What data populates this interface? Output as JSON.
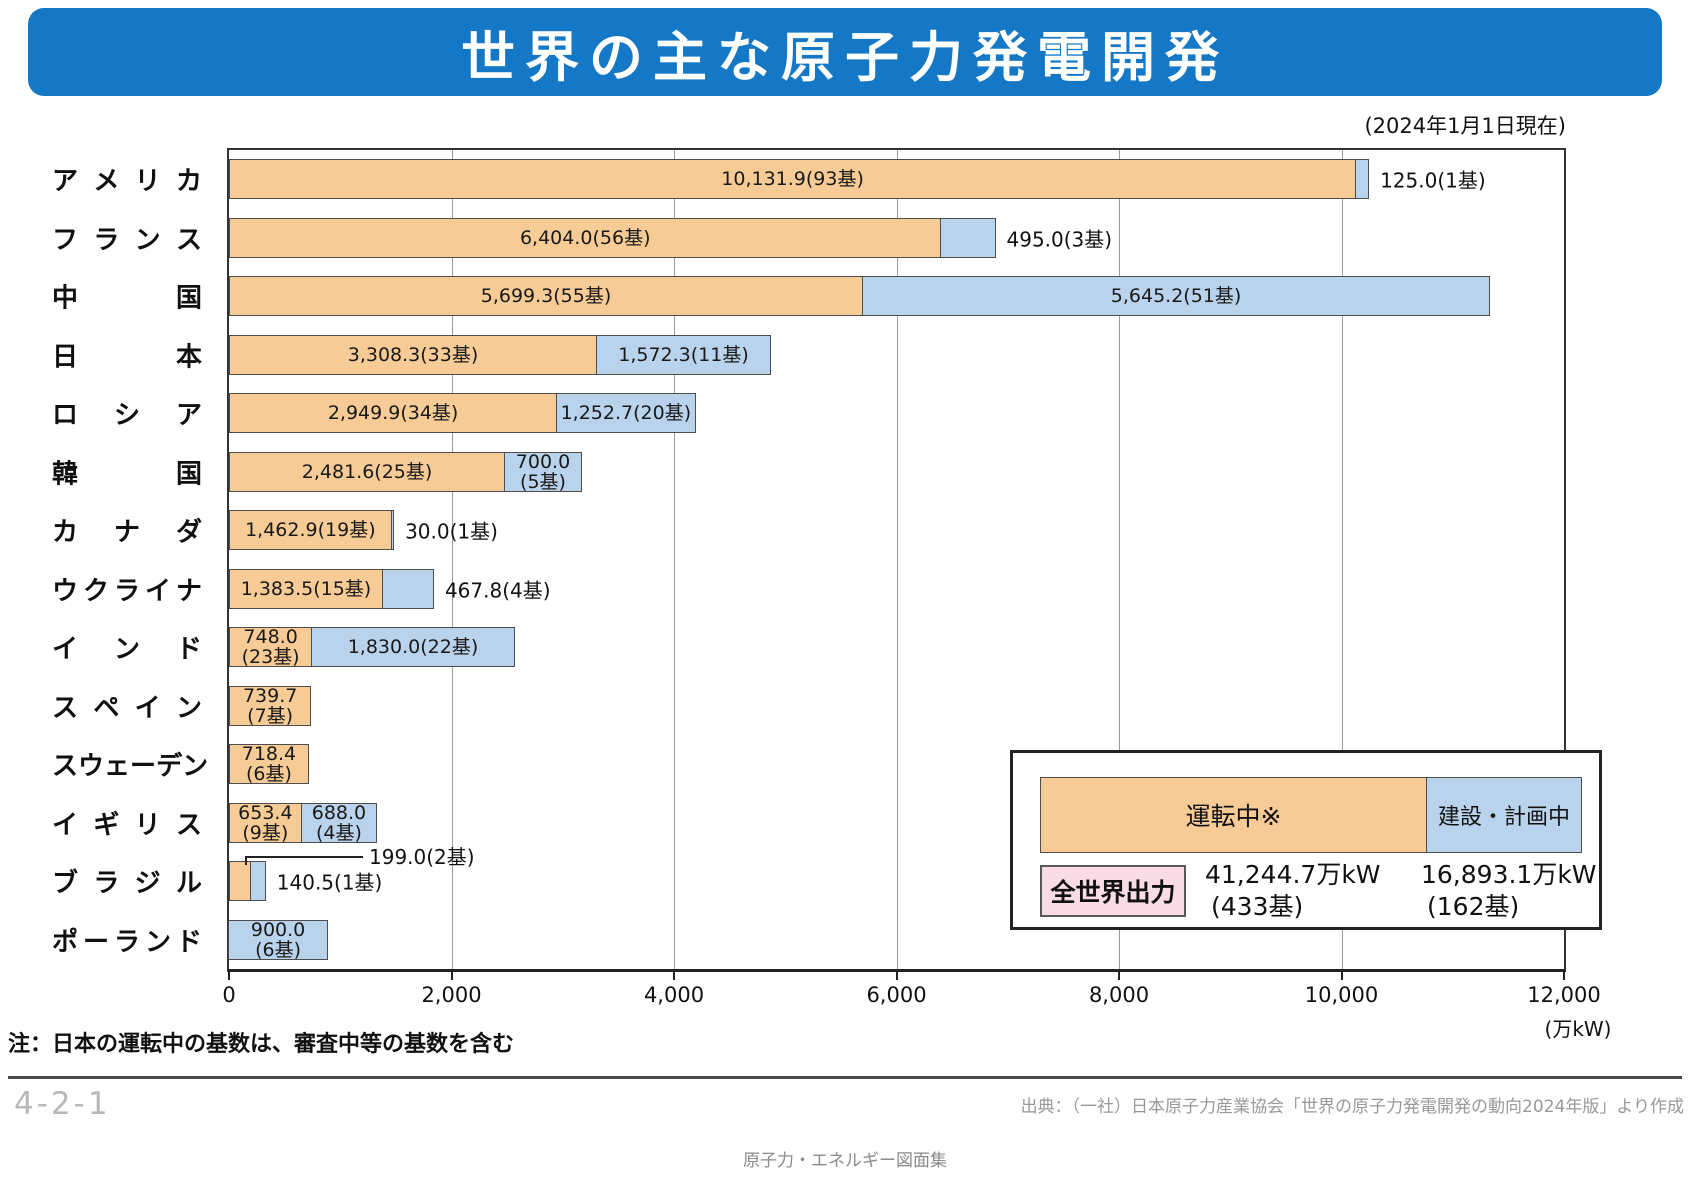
{
  "page": {
    "title": "世界の主な原子力発電開発",
    "as_of": "(2024年1月1日現在)",
    "note": "注：日本の運転中の基数は、審査中等の基数を含む",
    "page_number": "4-2-1",
    "source": "出典：（一社）日本原子力産業協会「世界の原子力発電開発の動向2024年版」より作成",
    "footer": "原子力・エネルギー図面集"
  },
  "colors": {
    "title_bar": "#1478C6",
    "operating": "#F6CB95",
    "planned": "#BAD3EC",
    "world_output_bg": "#FADCE7",
    "bar_border": "#4d4d4d"
  },
  "legend": {
    "operating_label": "運転中※",
    "planned_label": "建設・計画中",
    "world_output_label": "全世界出力",
    "operating_total": "41,244.7万kW",
    "operating_units": "(433基)",
    "planned_total": "16,893.1万kW",
    "planned_units": "(162基)"
  },
  "chart_data": {
    "type": "bar",
    "orientation": "horizontal",
    "title": "世界の主な原子力発電開発",
    "unit": "万kW",
    "xlim": [
      0,
      12000
    ],
    "xticks": [
      0,
      2000,
      4000,
      6000,
      8000,
      10000,
      12000
    ],
    "xtick_labels": [
      "0",
      "2,000",
      "4,000",
      "6,000",
      "8,000",
      "10,000",
      "12,000"
    ],
    "x_unit_label": "(万kW)",
    "grid": true,
    "series": [
      "運転中",
      "建設・計画中"
    ],
    "rows": [
      {
        "country": "アメリカ",
        "operating": 10131.9,
        "operating_label": [
          "10,131.9(93基)"
        ],
        "operating_label_pos": "inside",
        "planned": 125.0,
        "planned_label": [
          "125.0(1基)"
        ],
        "planned_label_pos": "outside"
      },
      {
        "country": "フランス",
        "operating": 6404.0,
        "operating_label": [
          "6,404.0(56基)"
        ],
        "operating_label_pos": "inside",
        "planned": 495.0,
        "planned_label": [
          "495.0(3基)"
        ],
        "planned_label_pos": "outside"
      },
      {
        "country": "中国",
        "operating": 5699.3,
        "operating_label": [
          "5,699.3(55基)"
        ],
        "operating_label_pos": "inside",
        "planned": 5645.2,
        "planned_label": [
          "5,645.2(51基)"
        ],
        "planned_label_pos": "inside"
      },
      {
        "country": "日本",
        "operating": 3308.3,
        "operating_label": [
          "3,308.3(33基)"
        ],
        "operating_label_pos": "inside",
        "planned": 1572.3,
        "planned_label": [
          "1,572.3(11基)"
        ],
        "planned_label_pos": "inside"
      },
      {
        "country": "ロシア",
        "operating": 2949.9,
        "operating_label": [
          "2,949.9(34基)"
        ],
        "operating_label_pos": "inside",
        "planned": 1252.7,
        "planned_label": [
          "1,252.7(20基)"
        ],
        "planned_label_pos": "inside"
      },
      {
        "country": "韓国",
        "operating": 2481.6,
        "operating_label": [
          "2,481.6(25基)"
        ],
        "operating_label_pos": "inside",
        "planned": 700.0,
        "planned_label": [
          "700.0",
          "(5基)"
        ],
        "planned_label_pos": "inside"
      },
      {
        "country": "カナダ",
        "operating": 1462.9,
        "operating_label": [
          "1,462.9(19基)"
        ],
        "operating_label_pos": "inside",
        "planned": 30.0,
        "planned_label": [
          "30.0(1基)"
        ],
        "planned_label_pos": "outside"
      },
      {
        "country": "ウクライナ",
        "operating": 1383.5,
        "operating_label": [
          "1,383.5(15基)"
        ],
        "operating_label_pos": "inside",
        "planned": 467.8,
        "planned_label": [
          "467.8(4基)"
        ],
        "planned_label_pos": "outside"
      },
      {
        "country": "インド",
        "operating": 748.0,
        "operating_label": [
          "748.0",
          "(23基)"
        ],
        "operating_label_pos": "inside",
        "planned": 1830.0,
        "planned_label": [
          "1,830.0(22基)"
        ],
        "planned_label_pos": "inside"
      },
      {
        "country": "スペイン",
        "operating": 739.7,
        "operating_label": [
          "739.7",
          "(7基)"
        ],
        "operating_label_pos": "inside",
        "planned": 0,
        "planned_label": [],
        "planned_label_pos": "none"
      },
      {
        "country": "スウェーデン",
        "operating": 718.4,
        "operating_label": [
          "718.4",
          "(6基)"
        ],
        "operating_label_pos": "inside",
        "planned": 0,
        "planned_label": [],
        "planned_label_pos": "none"
      },
      {
        "country": "イギリス",
        "operating": 653.4,
        "operating_label": [
          "653.4",
          "(9基)"
        ],
        "operating_label_pos": "inside",
        "planned": 688.0,
        "planned_label": [
          "688.0",
          "(4基)"
        ],
        "planned_label_pos": "inside"
      },
      {
        "country": "ブラジル",
        "operating": 199.0,
        "operating_label": [
          "199.0(2基)"
        ],
        "operating_label_pos": "leader",
        "planned": 140.5,
        "planned_label": [
          "140.5(1基)"
        ],
        "planned_label_pos": "outside"
      },
      {
        "country": "ポーランド",
        "operating": 0,
        "operating_label": [],
        "operating_label_pos": "none",
        "planned": 900.0,
        "planned_label": [
          "900.0",
          "(6基)"
        ],
        "planned_label_pos": "inside"
      }
    ]
  }
}
